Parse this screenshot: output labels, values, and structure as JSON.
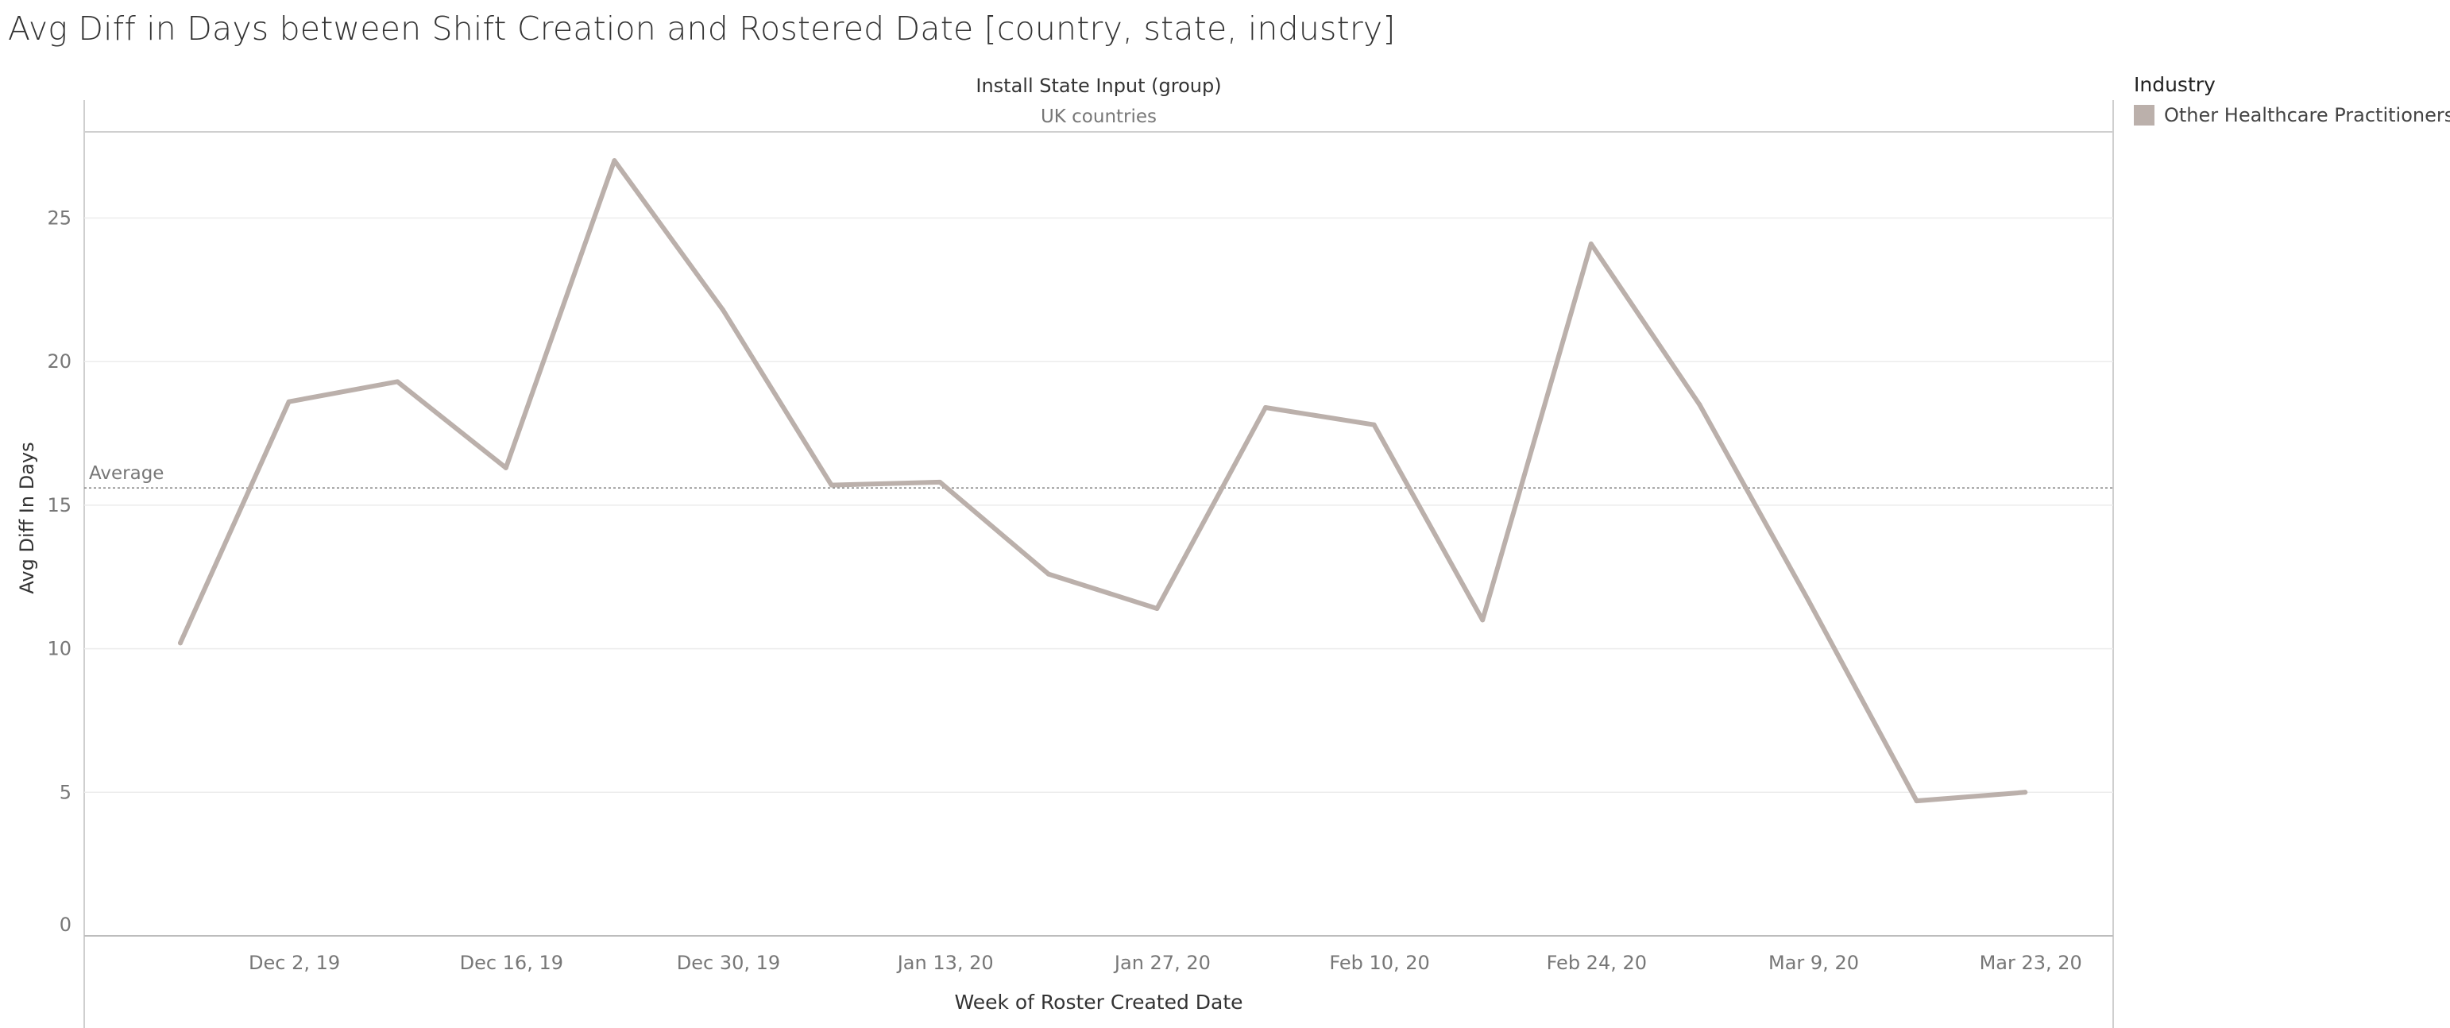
{
  "title": "Avg Diff in Days between Shift Creation and Rostered Date [country, state, industry]",
  "legend": {
    "title": "Industry",
    "items": [
      {
        "label": "Other Healthcare Practitioners",
        "color": "#bbb0ab"
      }
    ]
  },
  "chart_data": {
    "type": "line",
    "column_header": "Install State Input (group)",
    "panel_label": "UK countries",
    "xlabel": "Week of Roster Created Date",
    "ylabel": "Avg Diff In Days",
    "ylim": [
      0,
      28
    ],
    "yticks": [
      0,
      5,
      10,
      15,
      20,
      25
    ],
    "x_ticks": [
      "Dec 2, 19",
      "Dec 16, 19",
      "Dec 30, 19",
      "Jan 13, 20",
      "Jan 27, 20",
      "Feb 10, 20",
      "Feb 24, 20",
      "Mar 9, 20",
      "Mar 23, 20"
    ],
    "x": [
      "2019-11-25",
      "2019-12-02",
      "2019-12-09",
      "2019-12-16",
      "2019-12-23",
      "2019-12-30",
      "2020-01-06",
      "2020-01-13",
      "2020-01-20",
      "2020-01-27",
      "2020-02-03",
      "2020-02-10",
      "2020-02-17",
      "2020-02-24",
      "2020-03-02",
      "2020-03-09",
      "2020-03-16",
      "2020-03-23"
    ],
    "series": [
      {
        "name": "Other Healthcare Practitioners",
        "color": "#bbb0ab",
        "values": [
          10.2,
          18.6,
          19.3,
          16.3,
          27.0,
          21.8,
          15.7,
          15.8,
          12.6,
          11.4,
          18.4,
          17.8,
          11.0,
          24.1,
          18.5,
          11.7,
          4.7,
          5.0
        ]
      }
    ],
    "reference_line": {
      "label": "Average",
      "value": 15.6
    },
    "grid": true
  }
}
